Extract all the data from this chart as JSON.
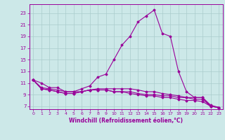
{
  "title": "",
  "xlabel": "Windchill (Refroidissement éolien,°C)",
  "background_color": "#cce8e8",
  "grid_color": "#aacccc",
  "line_color": "#990099",
  "hours": [
    0,
    1,
    2,
    3,
    4,
    5,
    6,
    7,
    8,
    9,
    10,
    11,
    12,
    13,
    14,
    15,
    16,
    17,
    18,
    19,
    20,
    21,
    22,
    23
  ],
  "series": [
    [
      11.5,
      11.0,
      10.2,
      10.2,
      9.5,
      9.5,
      10.0,
      10.5,
      12.0,
      12.5,
      15.0,
      17.5,
      19.0,
      21.5,
      22.5,
      23.5,
      19.5,
      19.0,
      13.0,
      9.5,
      8.5,
      8.5,
      7.0,
      6.8
    ],
    [
      11.5,
      10.2,
      10.0,
      9.8,
      9.5,
      9.5,
      9.5,
      9.8,
      10.0,
      10.0,
      10.0,
      10.0,
      10.0,
      9.8,
      9.5,
      9.5,
      9.2,
      9.0,
      8.8,
      8.5,
      8.5,
      8.5,
      7.2,
      6.8
    ],
    [
      11.5,
      10.0,
      9.8,
      9.5,
      9.2,
      9.2,
      9.5,
      9.8,
      9.8,
      9.8,
      9.5,
      9.5,
      9.5,
      9.2,
      9.0,
      9.0,
      8.8,
      8.8,
      8.5,
      8.5,
      8.2,
      8.2,
      7.0,
      6.8
    ],
    [
      11.5,
      10.0,
      9.8,
      9.5,
      9.2,
      9.2,
      9.5,
      9.8,
      9.8,
      9.8,
      9.5,
      9.5,
      9.2,
      9.0,
      8.8,
      8.8,
      8.5,
      8.5,
      8.2,
      8.0,
      8.0,
      7.8,
      7.0,
      6.8
    ]
  ],
  "ylim": [
    6.5,
    24.5
  ],
  "xlim": [
    -0.5,
    23.5
  ],
  "yticks": [
    7,
    9,
    11,
    13,
    15,
    17,
    19,
    21,
    23
  ],
  "xticks": [
    0,
    1,
    2,
    3,
    4,
    5,
    6,
    7,
    8,
    9,
    10,
    11,
    12,
    13,
    14,
    15,
    16,
    17,
    18,
    19,
    20,
    21,
    22,
    23
  ]
}
